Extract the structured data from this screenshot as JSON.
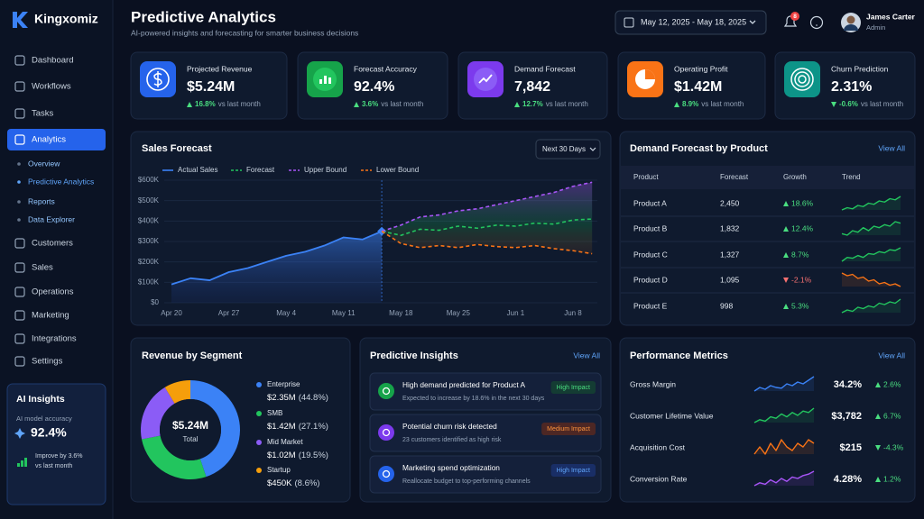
{
  "sidebar": {
    "brand": "Kingxomiz",
    "nav": [
      "Dashboard",
      "Workflows",
      "Tasks",
      "Analytics"
    ],
    "analytics_sub": [
      "Overview",
      "Predictive Analytics",
      "Reports",
      "Data Explorer"
    ],
    "nav_more": [
      "Customers",
      "Sales",
      "Operations",
      "Marketing",
      "Integrations",
      "Settings"
    ]
  },
  "ai_insights": {
    "title": "AI Insights",
    "label": "AI model accuracy",
    "value": "92.4%",
    "note": "Improve by 3.6%",
    "note2": "vs last month"
  },
  "header": {
    "title": "Predictive Analytics",
    "subtitle": "AI-powered insights and forecasting for smarter business decisions",
    "date_range": "May 12, 2025 - May 18, 2025",
    "notifications": "8",
    "user_name": "James Carter",
    "user_role": "Admin"
  },
  "kpis": [
    {
      "title": "Projected Revenue",
      "value": "$5.24M",
      "change": "16.8%",
      "compare": "vs last month"
    },
    {
      "title": "Forecast Accuracy",
      "value": "92.4%",
      "change": "3.6%",
      "compare": "vs last month"
    },
    {
      "title": "Demand Forecast",
      "value": "7,842",
      "change": "12.7%",
      "compare": "vs last month"
    },
    {
      "title": "Operating Profit",
      "value": "$1.42M",
      "change": "8.9%",
      "compare": "vs last month"
    },
    {
      "title": "Churn Prediction",
      "value": "2.31%",
      "change": "-0.6%",
      "compare": "vs last month"
    }
  ],
  "chart_data": [
    {
      "type": "line",
      "title": "Sales Forecast",
      "control": "Next 30 Days",
      "categories": [
        "Apr 20",
        null,
        null,
        "Apr 27",
        null,
        null,
        "May 4",
        null,
        null,
        "May 11",
        null,
        null,
        "May 18",
        null,
        null,
        "May 25",
        null,
        null,
        "Jun 1",
        null,
        null,
        "Jun 8",
        null
      ],
      "series": [
        {
          "name": "Actual Sales",
          "color": "#3b82f6",
          "style": "solid",
          "fill": true,
          "values": [
            90000,
            120000,
            110000,
            150000,
            170000,
            200000,
            230000,
            250000,
            280000,
            320000,
            310000,
            350000,
            null,
            null,
            null,
            null,
            null,
            null,
            null,
            null,
            null,
            null,
            null
          ]
        },
        {
          "name": "Forecast",
          "color": "#22c55e",
          "style": "dashed",
          "fill": false,
          "values": [
            null,
            null,
            null,
            null,
            null,
            null,
            null,
            null,
            null,
            null,
            null,
            350000,
            330000,
            360000,
            355000,
            375000,
            365000,
            380000,
            375000,
            390000,
            385000,
            405000,
            410000
          ]
        },
        {
          "name": "Upper Bound",
          "color": "#a855f7",
          "style": "dashed",
          "fill": false,
          "values": [
            null,
            null,
            null,
            null,
            null,
            null,
            null,
            null,
            null,
            null,
            null,
            350000,
            380000,
            420000,
            430000,
            450000,
            460000,
            480000,
            500000,
            520000,
            540000,
            570000,
            590000
          ]
        },
        {
          "name": "Lower Bound",
          "color": "#f97316",
          "style": "dashed",
          "fill": false,
          "values": [
            null,
            null,
            null,
            null,
            null,
            null,
            null,
            null,
            null,
            null,
            null,
            350000,
            290000,
            270000,
            280000,
            270000,
            285000,
            275000,
            270000,
            280000,
            265000,
            255000,
            240000
          ]
        }
      ],
      "ylim": [
        0,
        600000
      ],
      "yticks": [
        {
          "value": 0,
          "label": "$0"
        },
        {
          "value": 100000,
          "label": "$100K"
        },
        {
          "value": 200000,
          "label": "$200K"
        },
        {
          "value": 300000,
          "label": "$300K"
        },
        {
          "value": 400000,
          "label": "$400K"
        },
        {
          "value": 500000,
          "label": "$500K"
        },
        {
          "value": 600000,
          "label": "$600K"
        }
      ],
      "grid": true
    },
    {
      "type": "donut",
      "title": "Revenue by Segment",
      "center_value": "$5.24M",
      "center_label": "Total",
      "categories": [
        "Enterprise",
        "SMB",
        "Mid Market",
        "Startup"
      ],
      "values": [
        2350000,
        1420000,
        1020000,
        450000
      ],
      "value_labels": [
        "$2.35M",
        "$1.42M",
        "$1.02M",
        "$450K"
      ],
      "percent_labels": [
        "(44.8%)",
        "(27.1%)",
        "(19.5%)",
        "(8.6%)"
      ],
      "colors": [
        "#3b82f6",
        "#22c55e",
        "#8b5cf6",
        "#f59e0b"
      ]
    }
  ],
  "demand_table": {
    "title": "Demand Forecast by Product",
    "action": "View All",
    "columns": [
      "Product",
      "Forecast",
      "Growth",
      "Trend"
    ],
    "rows": [
      {
        "product": "Product A",
        "forecast": "2,450",
        "growth": "18.6%",
        "color": "#22c55e",
        "trend": [
          3,
          4,
          3.5,
          5,
          4.5,
          6,
          5.5,
          7,
          6.5,
          8,
          7.5,
          9
        ]
      },
      {
        "product": "Product B",
        "forecast": "1,832",
        "growth": "12.4%",
        "color": "#22c55e",
        "trend": [
          4,
          3.5,
          5,
          4.5,
          6,
          5,
          6.5,
          6,
          7,
          6.5,
          8,
          7.5
        ]
      },
      {
        "product": "Product C",
        "forecast": "1,327",
        "growth": "8.7%",
        "color": "#22c55e",
        "trend": [
          3,
          4,
          3.8,
          4.5,
          4,
          5,
          4.8,
          5.5,
          5.2,
          6,
          5.8,
          6.5
        ]
      },
      {
        "product": "Product D",
        "forecast": "1,095",
        "growth": "-2.1%",
        "color": "#f97316",
        "trend": [
          8,
          7,
          7.5,
          6,
          6.5,
          5,
          5.5,
          4,
          4.5,
          3.5,
          4,
          3
        ]
      },
      {
        "product": "Product E",
        "forecast": "998",
        "growth": "5.3%",
        "color": "#22c55e",
        "trend": [
          3,
          4,
          3.5,
          5,
          4.5,
          5.5,
          5,
          6.5,
          6,
          7,
          6.5,
          8
        ]
      }
    ]
  },
  "insights": {
    "title": "Predictive Insights",
    "action": "View All",
    "items": [
      {
        "title": "High demand predicted for Product A",
        "detail": "Expected to increase by 18.6% in the next 30 days",
        "impact": "High Impact"
      },
      {
        "title": "Potential churn risk detected",
        "detail": "23 customers identified as high risk",
        "impact": "Medium Impact"
      },
      {
        "title": "Marketing spend optimization",
        "detail": "Reallocate budget to top-performing channels",
        "impact": "High Impact"
      }
    ]
  },
  "metrics": {
    "title": "Performance Metrics",
    "action": "View All",
    "rows": [
      {
        "name": "Gross Margin",
        "value": "34.2%",
        "change": "2.6%",
        "color": "#3b82f6",
        "trend": [
          4,
          5,
          4.5,
          5.5,
          5,
          4.8,
          6,
          5.5,
          6.5,
          6,
          7,
          8
        ]
      },
      {
        "name": "Customer Lifetime Value",
        "value": "$3,782",
        "change": "6.7%",
        "color": "#22c55e",
        "trend": [
          3,
          4,
          3.5,
          5,
          4.5,
          6,
          5,
          6.5,
          5.5,
          7,
          6.5,
          8
        ]
      },
      {
        "name": "Acquisition Cost",
        "value": "$215",
        "change": "-4.3%",
        "color": "#f97316",
        "trend": [
          5,
          6,
          5,
          6.5,
          5.5,
          7,
          6,
          5.5,
          6.5,
          6,
          7,
          6.5
        ]
      },
      {
        "name": "Conversion Rate",
        "value": "4.28%",
        "change": "1.2%",
        "color": "#a855f7",
        "trend": [
          3,
          4,
          3.5,
          5,
          4,
          5.5,
          4.5,
          6,
          5.5,
          6.5,
          7,
          8
        ]
      }
    ]
  }
}
